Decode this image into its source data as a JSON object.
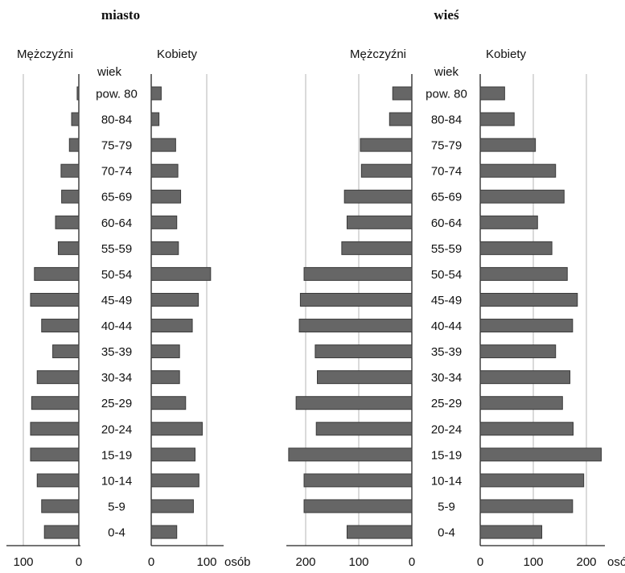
{
  "chart_data": [
    {
      "type": "bar",
      "title": "miasto",
      "left_label": "Mężczyźni",
      "right_label": "Kobiety",
      "category_label": "wiek",
      "unit_label": "osób",
      "categories": [
        "pow. 80",
        "80-84",
        "75-79",
        "70-74",
        "65-69",
        "60-64",
        "55-59",
        "50-54",
        "45-49",
        "40-44",
        "35-39",
        "30-34",
        "25-29",
        "20-24",
        "15-19",
        "10-14",
        "5-9",
        "0-4"
      ],
      "series": [
        {
          "name": "Mężczyźni",
          "values": [
            3,
            13,
            17,
            32,
            31,
            42,
            37,
            80,
            87,
            67,
            47,
            75,
            85,
            87,
            87,
            75,
            67,
            62
          ]
        },
        {
          "name": "Kobiety",
          "values": [
            18,
            14,
            44,
            48,
            53,
            46,
            49,
            107,
            85,
            74,
            51,
            51,
            62,
            92,
            79,
            86,
            76,
            46
          ]
        }
      ],
      "left_ticks": [
        100,
        0
      ],
      "right_ticks": [
        0,
        100
      ],
      "xlim": [
        0,
        130
      ]
    },
    {
      "type": "bar",
      "title": "wieś",
      "left_label": "Mężczyźni",
      "right_label": "Kobiety",
      "category_label": "wiek",
      "unit_label": "osób",
      "categories": [
        "pow. 80",
        "80-84",
        "75-79",
        "70-74",
        "65-69",
        "60-64",
        "55-59",
        "50-54",
        "45-49",
        "40-44",
        "35-39",
        "30-34",
        "25-29",
        "20-24",
        "15-19",
        "10-14",
        "5-9",
        "0-4"
      ],
      "series": [
        {
          "name": "Mężczyźni",
          "values": [
            36,
            42,
            97,
            95,
            127,
            122,
            132,
            203,
            210,
            212,
            182,
            178,
            218,
            180,
            232,
            203,
            203,
            122
          ]
        },
        {
          "name": "Kobiety",
          "values": [
            46,
            64,
            104,
            142,
            158,
            108,
            135,
            164,
            183,
            174,
            142,
            169,
            155,
            175,
            228,
            195,
            174,
            116
          ]
        }
      ],
      "left_ticks": [
        200,
        100,
        0
      ],
      "right_ticks": [
        0,
        100,
        200
      ],
      "xlim": [
        0,
        240
      ]
    }
  ]
}
